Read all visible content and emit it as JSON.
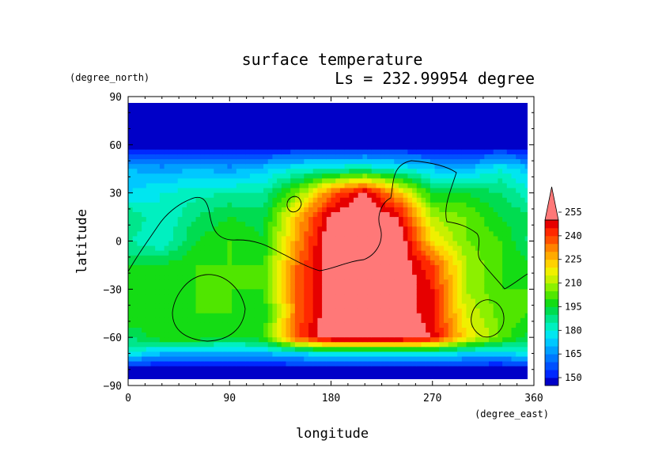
{
  "chart_data": {
    "type": "heatmap",
    "title": "surface temperature",
    "subtitle": "Ls = 232.99954 degree",
    "xlabel": "longitude",
    "ylabel": "latitude",
    "xunit": "(degree_east)",
    "yunit": "(degree_north)",
    "xlim": [
      0,
      360
    ],
    "ylim": [
      -90,
      90
    ],
    "xticks": [
      0,
      90,
      180,
      270,
      360
    ],
    "yticks": [
      90,
      60,
      30,
      0,
      -30,
      -60,
      -90
    ],
    "colorbar": {
      "levels": [
        150,
        155,
        160,
        165,
        170,
        175,
        180,
        185,
        190,
        195,
        200,
        205,
        210,
        215,
        220,
        225,
        230,
        235,
        240,
        245,
        250,
        255,
        260
      ],
      "labeled_levels": [
        150,
        165,
        180,
        195,
        210,
        225,
        240,
        255
      ],
      "colors": [
        "#0000c8",
        "#0028ff",
        "#0050ff",
        "#0078ff",
        "#00a0ff",
        "#00c8ff",
        "#00e6f0",
        "#00f0c0",
        "#00e68c",
        "#00dc50",
        "#14dc14",
        "#50e600",
        "#8cf000",
        "#c8f000",
        "#f0f000",
        "#ffd200",
        "#ffaa00",
        "#ff8200",
        "#ff5000",
        "#ff2800",
        "#e60000",
        "#ff7878"
      ],
      "extend": "max"
    },
    "data_grid": {
      "lons": [
        0,
        30,
        60,
        90,
        120,
        150,
        180,
        210,
        240,
        270,
        300,
        330,
        360
      ],
      "lats": [
        85,
        60,
        45,
        30,
        15,
        0,
        -15,
        -30,
        -45,
        -60,
        -70,
        -80
      ],
      "values": [
        [
          148,
          148,
          148,
          148,
          148,
          148,
          148,
          148,
          148,
          148,
          148,
          148,
          148
        ],
        [
          150,
          150,
          150,
          150,
          150,
          150,
          150,
          150,
          150,
          150,
          150,
          150,
          150
        ],
        [
          175,
          172,
          175,
          172,
          178,
          185,
          188,
          190,
          185,
          178,
          175,
          185,
          175
        ],
        [
          180,
          185,
          188,
          190,
          190,
          210,
          240,
          258,
          230,
          200,
          200,
          195,
          185
        ],
        [
          195,
          185,
          195,
          200,
          198,
          230,
          258,
          262,
          255,
          215,
          210,
          200,
          195
        ],
        [
          190,
          185,
          200,
          205,
          200,
          235,
          262,
          262,
          262,
          225,
          210,
          205,
          192
        ],
        [
          200,
          200,
          205,
          205,
          205,
          240,
          262,
          262,
          262,
          245,
          215,
          205,
          200
        ],
        [
          205,
          205,
          205,
          205,
          205,
          240,
          262,
          262,
          262,
          250,
          215,
          205,
          205
        ],
        [
          205,
          200,
          205,
          205,
          200,
          240,
          262,
          262,
          262,
          250,
          220,
          208,
          205
        ],
        [
          195,
          205,
          205,
          200,
          205,
          245,
          262,
          262,
          262,
          255,
          225,
          210,
          195
        ],
        [
          185,
          175,
          175,
          175,
          175,
          180,
          185,
          185,
          185,
          185,
          180,
          178,
          185
        ],
        [
          150,
          150,
          150,
          150,
          150,
          150,
          150,
          150,
          150,
          150,
          150,
          150,
          150
        ]
      ]
    }
  }
}
